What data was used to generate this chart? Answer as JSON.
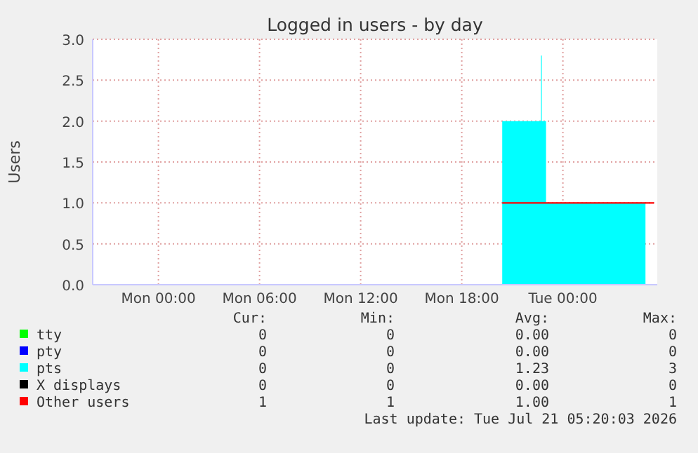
{
  "chart_data": {
    "type": "area",
    "title": "Logged in users - by day",
    "ylabel": "Users",
    "xlim": [
      "2026-07-19T20:06",
      "2026-07-21T05:36"
    ],
    "xticks": [
      {
        "value": "2026-07-20T00:00",
        "label": "Mon 00:00"
      },
      {
        "value": "2026-07-20T06:00",
        "label": "Mon 06:00"
      },
      {
        "value": "2026-07-20T12:00",
        "label": "Mon 12:00"
      },
      {
        "value": "2026-07-20T18:00",
        "label": "Mon 18:00"
      },
      {
        "value": "2026-07-21T00:00",
        "label": "Tue 00:00"
      }
    ],
    "ylim": [
      0,
      3
    ],
    "yticks": [
      {
        "value": 0,
        "label": "0.0"
      },
      {
        "value": 0.5,
        "label": "0.5"
      },
      {
        "value": 1,
        "label": "1.0"
      },
      {
        "value": 1.5,
        "label": "1.5"
      },
      {
        "value": 2,
        "label": "2.0"
      },
      {
        "value": 2.5,
        "label": "2.5"
      },
      {
        "value": 3,
        "label": "3.0"
      }
    ],
    "grid": true,
    "legend": "bottom",
    "series": [
      {
        "name": "tty",
        "color": "#00ff00"
      },
      {
        "name": "pty",
        "color": "#0000ff"
      },
      {
        "name": "pts",
        "color": "#00ffff",
        "x": [
          "2026-07-20T20:24",
          "2026-07-20T22:42",
          "2026-07-20T22:45",
          "2026-07-20T23:00",
          "2026-07-21T04:54"
        ],
        "values": [
          2,
          2.8,
          2,
          1,
          1
        ]
      },
      {
        "name": "X displays",
        "color": "#000000"
      },
      {
        "name": "Other users",
        "type": "line",
        "color": "#ff0000",
        "x": [
          "2026-07-20T20:24",
          "2026-07-21T05:24"
        ],
        "values": [
          1,
          1
        ]
      }
    ],
    "annotations": [
      "Cur:",
      "Min:",
      "Avg:",
      "Max:",
      "0",
      "0",
      "0.00",
      "0",
      "0",
      "0",
      "0.00",
      "0",
      "0",
      "0",
      "1.23",
      "3",
      "0",
      "0",
      "0.00",
      "0",
      "1",
      "1",
      "1.00",
      "1",
      "Last update: Tue Jul 21 05:20:03 2026"
    ]
  }
}
